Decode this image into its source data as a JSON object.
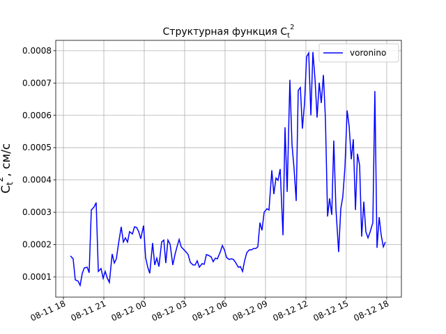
{
  "chart_data": {
    "type": "line",
    "title": {
      "main": "Структурная функция C",
      "sub": "t",
      "sup": "2"
    },
    "ylabel": {
      "main": "C",
      "sub": "t",
      "sup": "2",
      "unit": ", см/с"
    },
    "x": [
      18.52,
      18.72,
      18.88,
      19.09,
      19.24,
      19.4,
      19.55,
      19.76,
      19.91,
      20.07,
      20.28,
      20.43,
      20.59,
      20.79,
      20.95,
      21.1,
      21.26,
      21.41,
      21.62,
      21.78,
      21.93,
      22.09,
      22.29,
      22.45,
      22.6,
      22.76,
      22.91,
      23.12,
      23.28,
      23.43,
      23.59,
      23.74,
      23.95,
      24.1,
      24.26,
      24.41,
      24.62,
      24.78,
      24.93,
      25.09,
      25.29,
      25.45,
      25.6,
      25.76,
      25.92,
      26.12,
      26.28,
      26.43,
      26.59,
      26.74,
      26.95,
      27.11,
      27.26,
      27.42,
      27.62,
      27.78,
      27.93,
      28.09,
      28.29,
      28.45,
      28.61,
      28.76,
      28.97,
      29.12,
      29.28,
      29.43,
      29.64,
      29.8,
      29.95,
      30.11,
      30.31,
      30.47,
      30.62,
      30.78,
      30.98,
      31.14,
      31.3,
      31.45,
      31.61,
      31.81,
      31.97,
      32.12,
      32.28,
      32.43,
      32.59,
      32.74,
      32.9,
      33.11,
      33.26,
      33.47,
      33.62,
      33.78,
      33.93,
      34.09,
      34.3,
      34.45,
      34.61,
      34.81,
      34.97,
      35.12,
      35.28,
      35.43,
      35.59,
      35.74,
      35.9,
      36.05,
      36.21,
      36.37,
      36.52,
      36.68,
      36.83,
      36.99,
      37.14,
      37.3,
      37.45,
      37.61,
      37.76,
      37.92,
      38.07,
      38.23,
      38.43,
      38.59,
      38.74,
      38.9,
      39.06,
      39.21,
      39.37,
      39.52,
      39.68,
      39.83,
      39.99,
      40.14,
      40.3,
      40.45,
      40.61,
      40.76,
      40.97,
      41.12,
      41.28,
      41.44,
      41.59,
      41.75,
      41.9
    ],
    "series": [
      {
        "name": "voronino",
        "color": "#0000ff",
        "values": [
          0.000165,
          0.000156,
          9.1e-05,
          8.7e-05,
          7.4e-05,
          0.000111,
          0.000128,
          0.00013,
          0.000113,
          0.000307,
          0.000317,
          0.00033,
          0.000117,
          0.000126,
          9.6e-05,
          0.000117,
          9.6e-05,
          8.3e-05,
          0.000171,
          0.000143,
          0.000156,
          0.000203,
          0.000255,
          0.000208,
          0.000221,
          0.000208,
          0.00024,
          0.000233,
          0.000255,
          0.000253,
          0.00024,
          0.000218,
          0.000259,
          0.00016,
          0.00013,
          0.000111,
          0.000205,
          0.000137,
          0.000158,
          0.000132,
          0.000208,
          0.000214,
          0.000143,
          0.000214,
          0.000201,
          0.000137,
          0.000169,
          0.000193,
          0.000216,
          0.000193,
          0.000184,
          0.000177,
          0.000169,
          0.000145,
          0.000137,
          0.000137,
          0.00015,
          0.00013,
          0.000141,
          0.000139,
          0.000169,
          0.000167,
          0.000162,
          0.000147,
          0.000158,
          0.000156,
          0.000177,
          0.000197,
          0.000184,
          0.00016,
          0.000154,
          0.000156,
          0.000154,
          0.000145,
          0.00013,
          0.000132,
          0.000117,
          0.00015,
          0.000175,
          0.000184,
          0.000184,
          0.000188,
          0.000188,
          0.000193,
          0.000268,
          0.000244,
          0.0003,
          0.000311,
          0.000307,
          0.00043,
          0.000356,
          0.000406,
          0.000399,
          0.000434,
          0.000229,
          0.000563,
          0.000363,
          0.00071,
          0.000509,
          0.000436,
          0.000335,
          0.000677,
          0.000686,
          0.000559,
          0.000638,
          0.000781,
          0.000793,
          0.0006,
          0.000796,
          0.00071,
          0.000593,
          0.000701,
          0.000638,
          0.000725,
          0.000589,
          0.000287,
          0.000343,
          0.000292,
          0.000522,
          0.000311,
          0.000177,
          0.000311,
          0.000348,
          0.00044,
          0.000615,
          0.000567,
          0.000464,
          0.000526,
          0.000307,
          0.000481,
          0.000445,
          0.000225,
          0.000333,
          0.00024,
          0.000221,
          0.000238,
          0.000268,
          0.000675,
          0.00019,
          0.000285,
          0.000229,
          0.000193,
          0.000208
        ]
      }
    ],
    "xlim": [
      17.43,
      43.09
    ],
    "xticks": [
      {
        "value": 18,
        "label": "08-11 18"
      },
      {
        "value": 21,
        "label": "08-11 21"
      },
      {
        "value": 24,
        "label": "08-12 00"
      },
      {
        "value": 27,
        "label": "08-12 03"
      },
      {
        "value": 30,
        "label": "08-12 06"
      },
      {
        "value": 33,
        "label": "08-12 09"
      },
      {
        "value": 36,
        "label": "08-12 12"
      },
      {
        "value": 39,
        "label": "08-12 15"
      },
      {
        "value": 42,
        "label": "08-12 18"
      }
    ],
    "ylim": [
      3.75e-05,
      0.000832
    ],
    "yticks": [
      0.0001,
      0.0002,
      0.0003,
      0.0004,
      0.0005,
      0.0006,
      0.0007,
      0.0008
    ],
    "grid": true,
    "legend": "upper right"
  }
}
